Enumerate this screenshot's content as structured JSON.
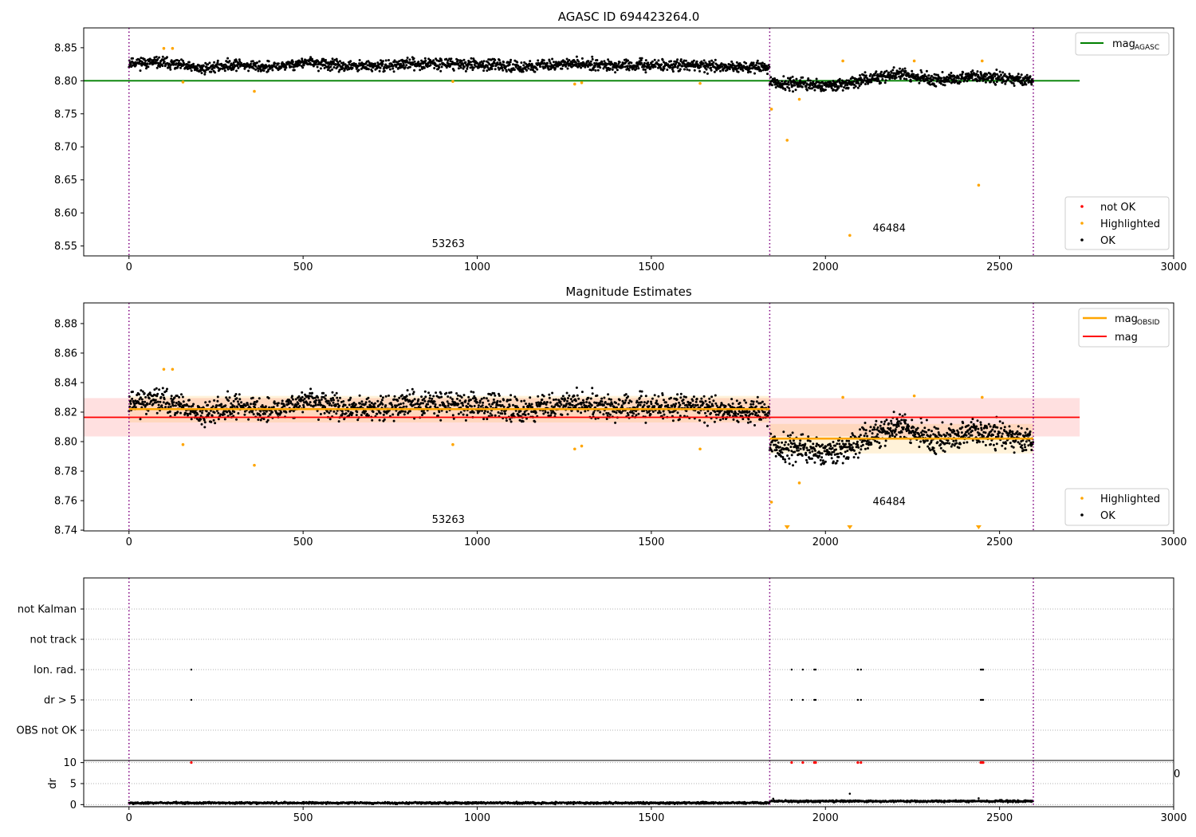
{
  "chart_data": [
    {
      "type": "scatter",
      "title": "AGASC ID 694423264.0",
      "xlabel": "",
      "ylabel": "",
      "xlim": [
        -130,
        3000
      ],
      "ylim": [
        8.535,
        8.88
      ],
      "xticks": [
        0,
        500,
        1000,
        1500,
        2000,
        2500,
        3000
      ],
      "yticks": [
        8.55,
        8.6,
        8.65,
        8.7,
        8.75,
        8.8,
        8.85
      ],
      "ytick_labels": [
        "8.55",
        "8.60",
        "8.65",
        "8.70",
        "8.75",
        "8.80",
        "8.85"
      ],
      "grid": false,
      "obsid_boundaries": [
        0,
        1840,
        2597
      ],
      "obsid_labels": [
        {
          "text": "53263",
          "x": 917,
          "y": 8.548
        },
        {
          "text": "46484",
          "x": 2183,
          "y": 8.572
        }
      ],
      "lines": [
        {
          "name": "mag_AGASC",
          "legend_label": "mag",
          "legend_sub": "AGASC",
          "color": "#008000",
          "y": 8.8,
          "x": [
            -130,
            2730
          ]
        }
      ],
      "ok_segments": [
        {
          "x0": 0,
          "x1": 1840,
          "center": [
            8.828,
            8.827,
            8.818,
            8.825,
            8.82,
            8.828,
            8.822,
            8.822,
            8.826,
            8.826,
            8.824,
            8.821,
            8.825,
            8.826,
            8.822,
            8.824,
            8.823,
            8.821,
            8.82
          ],
          "spread": 0.008,
          "count": 1700
        },
        {
          "x0": 1840,
          "x1": 2597,
          "center": [
            8.797,
            8.795,
            8.792,
            8.802,
            8.812,
            8.8,
            8.806,
            8.804,
            8.8
          ],
          "spread": 0.009,
          "count": 760
        }
      ],
      "highlighted": [
        [
          100,
          8.849
        ],
        [
          125,
          8.849
        ],
        [
          155,
          8.798
        ],
        [
          360,
          8.784
        ],
        [
          930,
          8.799
        ],
        [
          1280,
          8.795
        ],
        [
          1300,
          8.797
        ],
        [
          1640,
          8.796
        ],
        [
          1845,
          8.757
        ],
        [
          1890,
          8.71
        ],
        [
          1925,
          8.772
        ],
        [
          2050,
          8.83
        ],
        [
          2070,
          8.566
        ],
        [
          2255,
          8.83
        ],
        [
          2440,
          8.642
        ],
        [
          2450,
          8.83
        ]
      ],
      "legends": [
        {
          "position": "upper right",
          "entries": [
            "mag_AGASC"
          ]
        },
        {
          "position": "lower right",
          "entries": [
            {
              "label": "not OK",
              "color": "#ff0000"
            },
            {
              "label": "Highlighted",
              "color": "#ffa500"
            },
            {
              "label": "OK",
              "color": "#000000"
            }
          ]
        }
      ]
    },
    {
      "type": "scatter",
      "title": "Magnitude Estimates",
      "xlabel": "",
      "ylabel": "",
      "xlim": [
        -130,
        3000
      ],
      "ylim": [
        8.7395,
        8.894
      ],
      "xticks": [
        0,
        500,
        1000,
        1500,
        2000,
        2500,
        3000
      ],
      "yticks": [
        8.74,
        8.76,
        8.78,
        8.8,
        8.82,
        8.84,
        8.86,
        8.88
      ],
      "ytick_labels": [
        "8.74",
        "8.76",
        "8.78",
        "8.80",
        "8.82",
        "8.84",
        "8.86",
        "8.88"
      ],
      "obsid_boundaries": [
        0,
        1840,
        2597
      ],
      "obsid_labels": [
        {
          "text": "53263",
          "x": 917,
          "y": 8.745
        },
        {
          "text": "46484",
          "x": 2183,
          "y": 8.757
        }
      ],
      "lines": [
        {
          "name": "mag_OBSID",
          "legend_label": "mag",
          "legend_sub": "OBSID",
          "color": "#ffa500",
          "segments": [
            {
              "x": [
                0,
                1840
              ],
              "y": 8.822,
              "band": [
                8.813,
                8.831
              ]
            },
            {
              "x": [
                1840,
                2597
              ],
              "y": 8.802,
              "band": [
                8.792,
                8.812
              ]
            }
          ]
        },
        {
          "name": "mag",
          "legend_label": "mag",
          "color": "#ff0000",
          "y": 8.8165,
          "band": [
            8.8035,
            8.8295
          ],
          "x": [
            -130,
            2730
          ]
        }
      ],
      "highlighted": [
        [
          100,
          8.849
        ],
        [
          125,
          8.849
        ],
        [
          155,
          8.798
        ],
        [
          360,
          8.784
        ],
        [
          930,
          8.798
        ],
        [
          1280,
          8.795
        ],
        [
          1300,
          8.797
        ],
        [
          1640,
          8.795
        ],
        [
          1845,
          8.759
        ],
        [
          1925,
          8.772
        ],
        [
          2050,
          8.83
        ],
        [
          2255,
          8.831
        ],
        [
          2450,
          8.83
        ]
      ],
      "off_scale_low": [
        1890,
        2070,
        2440
      ],
      "legends": [
        {
          "position": "upper right",
          "entries": [
            "mag_OBSID",
            "mag"
          ]
        },
        {
          "position": "lower right",
          "entries": [
            {
              "label": "Highlighted",
              "color": "#ffa500"
            },
            {
              "label": "OK",
              "color": "#000000"
            }
          ]
        }
      ]
    },
    {
      "type": "scatter",
      "title": "",
      "xlabel": "",
      "ylabel": "",
      "xlim": [
        -130,
        3000
      ],
      "flag_rows": [
        "not Kalman",
        "not track",
        "Ion. rad.",
        "dr > 5",
        "OBS not OK"
      ],
      "flag_events": {
        "Ion. rad.": [
          179,
          1903,
          1935,
          1968,
          1972,
          2093,
          2102,
          2446,
          2450,
          2453
        ],
        "dr > 5": [
          179,
          1903,
          1935,
          1968,
          1972,
          2093,
          2102,
          2446,
          2450,
          2453
        ]
      },
      "obsid_boundaries": [
        0,
        1840,
        2597
      ]
    },
    {
      "type": "scatter",
      "title": "",
      "xlabel": "",
      "ylabel": "dr",
      "xlim": [
        -130,
        3000
      ],
      "ylim": [
        -0.5,
        10.5
      ],
      "xticks": [
        0,
        500,
        1000,
        1500,
        2000,
        2500,
        3000
      ],
      "yticks": [
        0,
        5,
        10
      ],
      "obsid_boundaries": [
        0,
        1840,
        2597
      ],
      "dr_baseline": [
        {
          "x0": 0,
          "x1": 1840,
          "mean": 0.4
        },
        {
          "x0": 1840,
          "x1": 2597,
          "mean": 0.8
        }
      ],
      "outliers": [
        [
          2070,
          2.6
        ],
        [
          1850,
          1.4
        ],
        [
          2440,
          1.5
        ]
      ],
      "not_ok": [
        [
          179,
          10
        ],
        [
          1903,
          10
        ],
        [
          1935,
          10
        ],
        [
          1968,
          10
        ],
        [
          1972,
          10
        ],
        [
          2093,
          10
        ],
        [
          2102,
          10
        ],
        [
          2446,
          10
        ],
        [
          2450,
          10
        ],
        [
          2453,
          10
        ]
      ]
    }
  ],
  "clipped_label": "0"
}
